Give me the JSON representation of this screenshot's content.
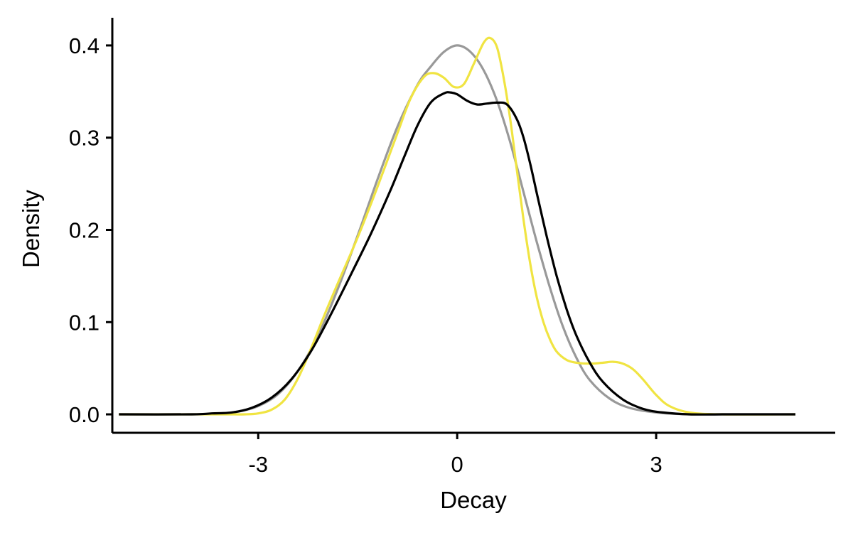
{
  "chart_data": {
    "type": "line",
    "title": "",
    "xlabel": "Decay",
    "ylabel": "Density",
    "xlim": [
      -5.2,
      5.7
    ],
    "ylim": [
      -0.02,
      0.43
    ],
    "x_ticks": [
      -3,
      0,
      3
    ],
    "x_tick_labels": [
      "-3",
      "0",
      "3"
    ],
    "y_ticks": [
      0.0,
      0.1,
      0.2,
      0.3,
      0.4
    ],
    "y_tick_labels": [
      "0.0",
      "0.1",
      "0.2",
      "0.3",
      "0.4"
    ],
    "grid": false,
    "legend": "none",
    "series": [
      {
        "color": "#999999",
        "x": [
          -5.1,
          -4.0,
          -3.6,
          -3.3,
          -3.0,
          -2.7,
          -2.4,
          -2.1,
          -1.8,
          -1.5,
          -1.2,
          -0.9,
          -0.6,
          -0.4,
          -0.2,
          0.0,
          0.2,
          0.4,
          0.6,
          0.8,
          1.0,
          1.2,
          1.4,
          1.6,
          1.8,
          2.0,
          2.3,
          2.6,
          3.0,
          3.5,
          4.0,
          4.5,
          5.1
        ],
        "y": [
          0.0,
          0.0,
          0.001,
          0.003,
          0.009,
          0.022,
          0.047,
          0.085,
          0.136,
          0.194,
          0.255,
          0.312,
          0.357,
          0.377,
          0.393,
          0.4,
          0.393,
          0.373,
          0.34,
          0.295,
          0.241,
          0.187,
          0.137,
          0.094,
          0.061,
          0.037,
          0.017,
          0.007,
          0.002,
          0.0,
          0.0,
          0.0,
          0.0
        ]
      },
      {
        "color": "#F0E442",
        "x": [
          -5.1,
          -4.0,
          -3.5,
          -3.2,
          -3.0,
          -2.8,
          -2.6,
          -2.4,
          -2.2,
          -2.0,
          -1.8,
          -1.5,
          -1.2,
          -0.9,
          -0.7,
          -0.5,
          -0.35,
          -0.2,
          -0.05,
          0.1,
          0.25,
          0.4,
          0.5,
          0.6,
          0.7,
          0.8,
          0.9,
          1.0,
          1.1,
          1.2,
          1.3,
          1.4,
          1.5,
          1.65,
          1.8,
          2.0,
          2.2,
          2.35,
          2.5,
          2.65,
          2.8,
          3.0,
          3.2,
          3.5,
          4.0,
          5.1
        ],
        "y": [
          0.0,
          0.0,
          0.0,
          0.0,
          0.001,
          0.005,
          0.016,
          0.039,
          0.072,
          0.108,
          0.142,
          0.192,
          0.247,
          0.305,
          0.343,
          0.366,
          0.37,
          0.365,
          0.355,
          0.358,
          0.38,
          0.403,
          0.408,
          0.398,
          0.365,
          0.32,
          0.265,
          0.211,
          0.164,
          0.127,
          0.1,
          0.081,
          0.068,
          0.059,
          0.056,
          0.055,
          0.056,
          0.057,
          0.055,
          0.049,
          0.038,
          0.021,
          0.009,
          0.002,
          0.0,
          0.0
        ]
      },
      {
        "color": "#000000",
        "x": [
          -5.1,
          -4.0,
          -3.7,
          -3.4,
          -3.1,
          -2.8,
          -2.5,
          -2.2,
          -1.9,
          -1.6,
          -1.3,
          -1.0,
          -0.8,
          -0.6,
          -0.4,
          -0.2,
          -0.1,
          0.0,
          0.15,
          0.3,
          0.45,
          0.6,
          0.75,
          0.9,
          1.0,
          1.1,
          1.2,
          1.35,
          1.5,
          1.65,
          1.8,
          2.0,
          2.2,
          2.5,
          2.8,
          3.1,
          3.5,
          4.0,
          4.5,
          5.1
        ],
        "y": [
          0.0,
          0.0,
          0.001,
          0.002,
          0.007,
          0.018,
          0.038,
          0.069,
          0.109,
          0.152,
          0.196,
          0.244,
          0.279,
          0.313,
          0.338,
          0.348,
          0.349,
          0.347,
          0.34,
          0.336,
          0.337,
          0.338,
          0.336,
          0.32,
          0.3,
          0.272,
          0.24,
          0.193,
          0.15,
          0.114,
          0.085,
          0.056,
          0.035,
          0.016,
          0.006,
          0.002,
          0.0,
          0.0,
          0.0,
          0.0
        ]
      }
    ]
  }
}
